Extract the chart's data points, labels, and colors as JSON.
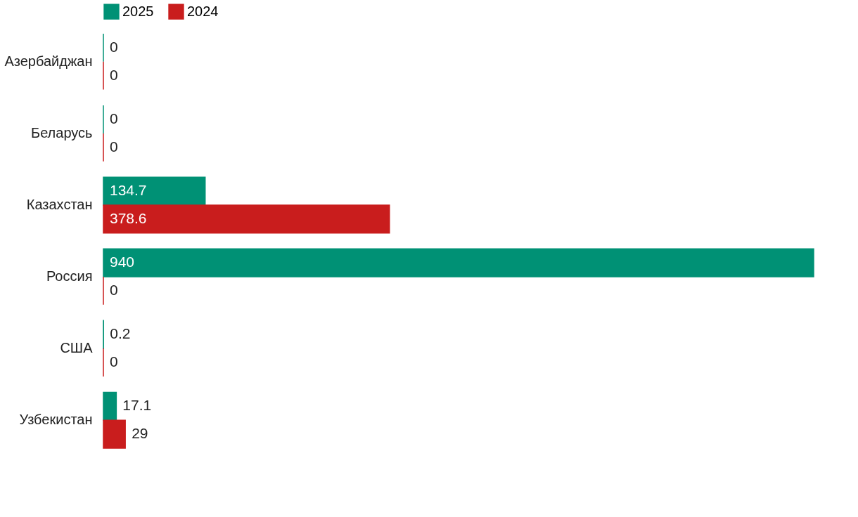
{
  "chart_data": {
    "type": "bar",
    "orientation": "horizontal",
    "data_labels": true,
    "legend": "top left",
    "grid": false,
    "categories": [
      "Азербайджан",
      "Беларусь",
      "Казахстан",
      "Россия",
      "США",
      "Узбекистан"
    ],
    "series": [
      {
        "name": "2025",
        "color": "#009175",
        "values": [
          0,
          0,
          134.7,
          940,
          0.2,
          17.1
        ]
      },
      {
        "name": "2024",
        "color": "#c91d1d",
        "values": [
          0,
          0,
          378.6,
          0,
          0,
          29
        ]
      }
    ]
  }
}
